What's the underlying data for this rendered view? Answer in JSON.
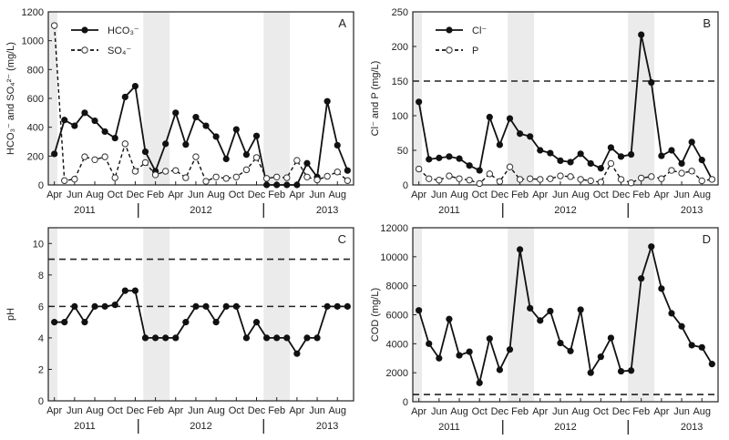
{
  "chart_data": [
    {
      "id": "A",
      "type": "line",
      "panel_label": "A",
      "ylabel": "HCO₃⁻ and SO₄²⁻ (mg/L)",
      "ylim": [
        0,
        1200
      ],
      "yticks": [
        0,
        200,
        400,
        600,
        800,
        1000,
        1200
      ],
      "x_unit": "months since Apr 2011",
      "series": [
        {
          "name": "HCO₃⁻",
          "style": "solid-filled",
          "values": [
            215,
            450,
            410,
            500,
            445,
            370,
            325,
            610,
            685,
            230,
            95,
            285,
            500,
            280,
            470,
            410,
            335,
            180,
            385,
            210,
            340,
            0,
            0,
            0,
            0,
            150,
            55,
            580,
            275,
            100
          ]
        },
        {
          "name": "SO₄⁻",
          "style": "dashed-open",
          "values": [
            1105,
            30,
            40,
            195,
            175,
            195,
            50,
            285,
            95,
            155,
            70,
            95,
            100,
            50,
            195,
            25,
            55,
            45,
            55,
            105,
            190,
            45,
            55,
            50,
            170,
            55,
            35,
            60,
            90,
            30
          ]
        }
      ],
      "reference_lines": []
    },
    {
      "id": "B",
      "type": "line",
      "panel_label": "B",
      "ylabel": "Cl⁻ and P (mg/L)",
      "ylim": [
        0,
        250
      ],
      "yticks": [
        0,
        50,
        100,
        150,
        200,
        250
      ],
      "x_unit": "months since Apr 2011",
      "series": [
        {
          "name": "Cl⁻",
          "style": "solid-filled",
          "values": [
            120,
            37,
            39,
            41,
            38,
            28,
            21,
            98,
            58,
            96,
            74,
            70,
            50,
            46,
            35,
            33,
            45,
            31,
            24,
            54,
            41,
            44,
            217,
            148,
            42,
            50,
            31,
            62,
            36,
            8
          ]
        },
        {
          "name": "P",
          "style": "dashed-open",
          "values": [
            23,
            9,
            7,
            13,
            9,
            7,
            2,
            16,
            5,
            26,
            8,
            9,
            8,
            9,
            13,
            12,
            8,
            6,
            4,
            31,
            8,
            3,
            10,
            12,
            9,
            21,
            17,
            20,
            6,
            8
          ]
        }
      ],
      "reference_lines": [
        150
      ]
    },
    {
      "id": "C",
      "type": "line",
      "panel_label": "C",
      "ylabel": "pH",
      "ylim": [
        0,
        11
      ],
      "yticks": [
        0,
        2,
        4,
        6,
        8,
        10
      ],
      "x_unit": "months since Apr 2011",
      "series": [
        {
          "name": "pH",
          "style": "solid-filled",
          "values": [
            5,
            5,
            6,
            5,
            6,
            6,
            6.1,
            7,
            7,
            4,
            4,
            4,
            4,
            5,
            6,
            6,
            5,
            6,
            6,
            4,
            5,
            4,
            4,
            4,
            3,
            4,
            4,
            6,
            6,
            6
          ]
        }
      ],
      "reference_lines": [
        6,
        9
      ]
    },
    {
      "id": "D",
      "type": "line",
      "panel_label": "D",
      "ylabel": "COD (mg/L)",
      "ylim": [
        0,
        12000
      ],
      "yticks": [
        0,
        2000,
        4000,
        6000,
        8000,
        10000,
        12000
      ],
      "x_unit": "months since Apr 2011",
      "series": [
        {
          "name": "COD",
          "style": "solid-filled",
          "values": [
            6300,
            4000,
            3000,
            5700,
            3200,
            3450,
            1300,
            4350,
            2200,
            3600,
            10500,
            6450,
            5600,
            6250,
            4050,
            3500,
            6350,
            2000,
            3100,
            4400,
            2100,
            2150,
            8500,
            10700,
            7800,
            6100,
            5200,
            3900,
            3750,
            2600
          ]
        }
      ],
      "reference_lines": [
        500
      ]
    }
  ],
  "x_axis": {
    "month_ticks": [
      "Apr",
      "Jun",
      "Aug",
      "Oct",
      "Dec",
      "Feb",
      "Apr",
      "Jun",
      "Aug",
      "Oct",
      "Dec",
      "Feb",
      "Apr",
      "Jun",
      "Aug"
    ],
    "years": [
      "2011",
      "2012",
      "2013"
    ],
    "xlim_months": [
      -0.6,
      29.6
    ],
    "shaded_periods_months": [
      [
        -0.6,
        0.3
      ],
      [
        8.8,
        11.4
      ],
      [
        20.7,
        23.3
      ]
    ],
    "year_boundaries_months": [
      8.3,
      20.7
    ]
  }
}
